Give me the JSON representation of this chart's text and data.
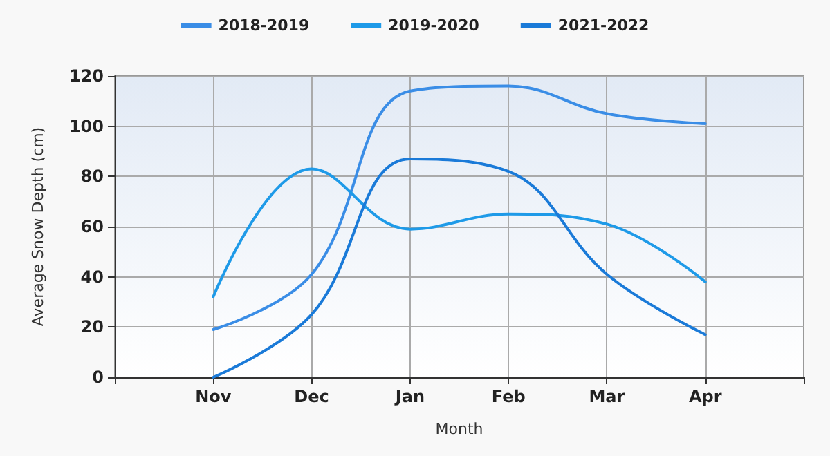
{
  "chart_data": {
    "type": "line",
    "xlabel": "Month",
    "ylabel": "Average Snow Depth (cm)",
    "categories": [
      null,
      "Nov",
      "Dec",
      "Jan",
      "Feb",
      "Mar",
      "Apr",
      null
    ],
    "series": [
      {
        "name": "2018-2019",
        "color": "#3a8de6",
        "values": [
          null,
          19,
          41,
          114,
          116,
          105,
          101,
          null
        ]
      },
      {
        "name": "2019-2020",
        "color": "#1e9ae8",
        "values": [
          null,
          32,
          83,
          59,
          65,
          61,
          38,
          null
        ]
      },
      {
        "name": "2021-2022",
        "color": "#1a7ad8",
        "values": [
          null,
          0,
          25,
          87,
          82,
          41,
          17,
          null
        ]
      }
    ],
    "ylim": [
      0,
      120
    ],
    "yticks": [
      0,
      20,
      40,
      60,
      80,
      100,
      120
    ],
    "grid": true,
    "legend": "top",
    "marker": "none",
    "line_style": "solid"
  }
}
